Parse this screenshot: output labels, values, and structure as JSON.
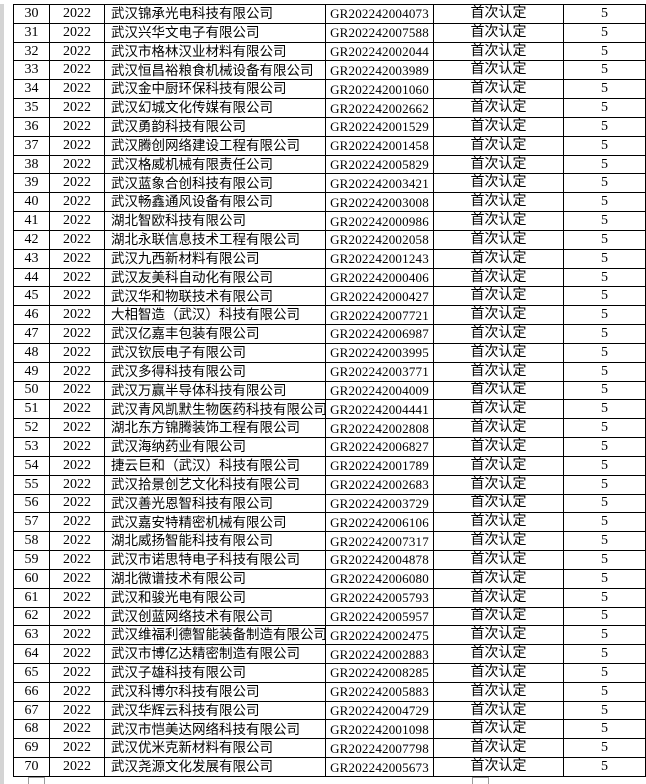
{
  "table": {
    "recognition_type_all": "首次认定",
    "validity_all": "5",
    "rows": [
      [
        "30",
        "2022",
        "武汉锦承光电科技有限公司",
        "GR202242004073",
        "首次认定",
        "5"
      ],
      [
        "31",
        "2022",
        "武汉兴华文电子有限公司",
        "GR202242007588",
        "首次认定",
        "5"
      ],
      [
        "32",
        "2022",
        "武汉市格林汉业材料有限公司",
        "GR202242002044",
        "首次认定",
        "5"
      ],
      [
        "33",
        "2022",
        "武汉恒昌裕粮食机械设备有限公司",
        "GR202242003989",
        "首次认定",
        "5"
      ],
      [
        "34",
        "2022",
        "武汉金中厨环保科技有限公司",
        "GR202242001060",
        "首次认定",
        "5"
      ],
      [
        "35",
        "2022",
        "武汉幻城文化传媒有限公司",
        "GR202242002662",
        "首次认定",
        "5"
      ],
      [
        "36",
        "2022",
        "武汉勇韵科技有限公司",
        "GR202242001529",
        "首次认定",
        "5"
      ],
      [
        "37",
        "2022",
        "武汉腾创网络建设工程有限公司",
        "GR202242001458",
        "首次认定",
        "5"
      ],
      [
        "38",
        "2022",
        "武汉格威机械有限责任公司",
        "GR202242005829",
        "首次认定",
        "5"
      ],
      [
        "39",
        "2022",
        "武汉蓝象合创科技有限公司",
        "GR202242003421",
        "首次认定",
        "5"
      ],
      [
        "40",
        "2022",
        "武汉畅鑫通风设备有限公司",
        "GR202242003008",
        "首次认定",
        "5"
      ],
      [
        "41",
        "2022",
        "湖北智欧科技有限公司",
        "GR202242000986",
        "首次认定",
        "5"
      ],
      [
        "42",
        "2022",
        "湖北永联信息技术工程有限公司",
        "GR202242002058",
        "首次认定",
        "5"
      ],
      [
        "43",
        "2022",
        "武汉九西新材料有限公司",
        "GR202242001243",
        "首次认定",
        "5"
      ],
      [
        "44",
        "2022",
        "武汉友美科自动化有限公司",
        "GR202242000406",
        "首次认定",
        "5"
      ],
      [
        "45",
        "2022",
        "武汉华和物联技术有限公司",
        "GR202242000427",
        "首次认定",
        "5"
      ],
      [
        "46",
        "2022",
        "大相智造（武汉）科技有限公司",
        "GR202242007721",
        "首次认定",
        "5"
      ],
      [
        "47",
        "2022",
        "武汉亿嘉丰包装有限公司",
        "GR202242006987",
        "首次认定",
        "5"
      ],
      [
        "48",
        "2022",
        "武汉钦辰电子有限公司",
        "GR202242003995",
        "首次认定",
        "5"
      ],
      [
        "49",
        "2022",
        "武汉多得科技有限公司",
        "GR202242003771",
        "首次认定",
        "5"
      ],
      [
        "50",
        "2022",
        "武汉万赢半导体科技有限公司",
        "GR202242004009",
        "首次认定",
        "5"
      ],
      [
        "51",
        "2022",
        "武汉青风凯默生物医药科技有限公司",
        "GR202242004441",
        "首次认定",
        "5"
      ],
      [
        "52",
        "2022",
        "湖北东方锦腾装饰工程有限公司",
        "GR202242002808",
        "首次认定",
        "5"
      ],
      [
        "53",
        "2022",
        "武汉海纳药业有限公司",
        "GR202242006827",
        "首次认定",
        "5"
      ],
      [
        "54",
        "2022",
        "捷云巨和（武汉）科技有限公司",
        "GR202242001789",
        "首次认定",
        "5"
      ],
      [
        "55",
        "2022",
        "武汉拾景创艺文化科技有限公司",
        "GR202242002683",
        "首次认定",
        "5"
      ],
      [
        "56",
        "2022",
        "武汉善光恩智科技有限公司",
        "GR202242003729",
        "首次认定",
        "5"
      ],
      [
        "57",
        "2022",
        "武汉嘉安特精密机械有限公司",
        "GR202242006106",
        "首次认定",
        "5"
      ],
      [
        "58",
        "2022",
        "湖北威扬智能科技有限公司",
        "GR202242007317",
        "首次认定",
        "5"
      ],
      [
        "59",
        "2022",
        "武汉市诺思特电子科技有限公司",
        "GR202242004878",
        "首次认定",
        "5"
      ],
      [
        "60",
        "2022",
        "湖北微谱技术有限公司",
        "GR202242006080",
        "首次认定",
        "5"
      ],
      [
        "61",
        "2022",
        "武汉和骏光电有限公司",
        "GR202242005793",
        "首次认定",
        "5"
      ],
      [
        "62",
        "2022",
        "武汉创蓝网络技术有限公司",
        "GR202242005957",
        "首次认定",
        "5"
      ],
      [
        "63",
        "2022",
        "武汉维福利德智能装备制造有限公司",
        "GR202242002475",
        "首次认定",
        "5"
      ],
      [
        "64",
        "2022",
        "武汉市博亿达精密制造有限公司",
        "GR202242002883",
        "首次认定",
        "5"
      ],
      [
        "65",
        "2022",
        "武汉子雄科技有限公司",
        "GR202242008285",
        "首次认定",
        "5"
      ],
      [
        "66",
        "2022",
        "武汉科博尔科技有限公司",
        "GR202242005883",
        "首次认定",
        "5"
      ],
      [
        "67",
        "2022",
        "武汉华辉云科技有限公司",
        "GR202242004729",
        "首次认定",
        "5"
      ],
      [
        "68",
        "2022",
        "武汉市恺美达网络科技有限公司",
        "GR202242001098",
        "首次认定",
        "5"
      ],
      [
        "69",
        "2022",
        "武汉优米克新材料有限公司",
        "GR202242007798",
        "首次认定",
        "5"
      ],
      [
        "70",
        "2022",
        "武汉尧源文化发展有限公司",
        "GR202242005673",
        "首次认定",
        "5"
      ]
    ]
  },
  "colors": {
    "grid_border": "#000000",
    "text": "#000000",
    "background": "#ffffff",
    "edge_strip": "#d4d4d4"
  }
}
